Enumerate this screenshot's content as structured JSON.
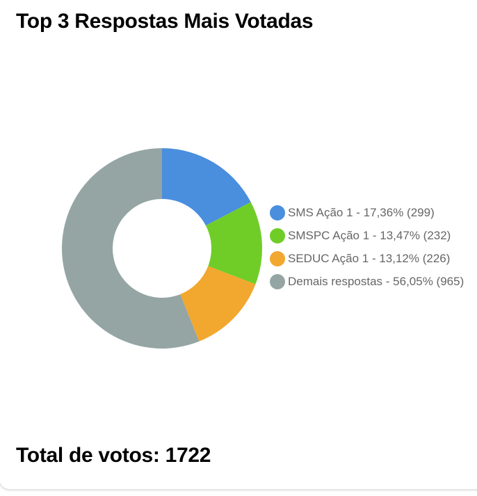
{
  "chart_data": {
    "type": "pie",
    "variant": "doughnut",
    "title": "Top 3 Respostas Mais Votadas",
    "total_votes": 1722,
    "legend_position": "right",
    "cutout_ratio": 0.49,
    "start_angle_deg": 0,
    "direction": "clockwise",
    "series": [
      {
        "name": "SMS Ação 1",
        "value": 299,
        "percent": "17,36%",
        "label": "SMS Ação 1 - 17,36% (299)",
        "color": "#4A8EDE"
      },
      {
        "name": "SMSPC Ação 1",
        "value": 232,
        "percent": "13,47%",
        "label": "SMSPC Ação 1 - 13,47% (232)",
        "color": "#70CD28"
      },
      {
        "name": "SEDUC Ação 1",
        "value": 226,
        "percent": "13,12%",
        "label": "SEDUC Ação 1 - 13,12% (226)",
        "color": "#F2A72E"
      },
      {
        "name": "Demais respostas",
        "value": 965,
        "percent": "56,05%",
        "label": "Demais respostas - 56,05% (965)",
        "color": "#94A5A4"
      }
    ]
  },
  "footer": {
    "total_label": "Total de votos: 1722"
  }
}
